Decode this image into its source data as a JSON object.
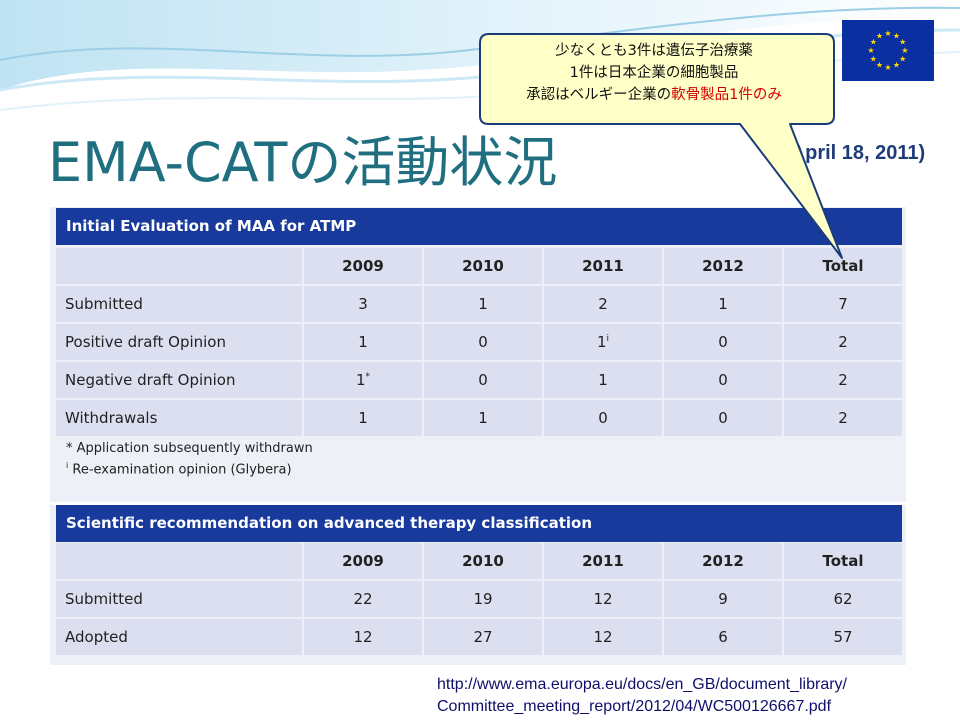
{
  "slide": {
    "title": "EMA-CATの活動状況",
    "date": "(April 18, 2011)",
    "flag_color": "#0a2fa0",
    "callout": {
      "line1": "少なくとも3件は遺伝子治療薬",
      "line2": "1件は日本企業の細胞製品",
      "line3_prefix": "承認はベルギー企業の",
      "line3_red": "軟骨製品1件のみ"
    }
  },
  "table1": {
    "header": "Initial Evaluation of MAA for ATMP",
    "columns": [
      "2009",
      "2010",
      "2011",
      "2012",
      "Total"
    ],
    "rows": [
      {
        "label": "Submitted",
        "values": [
          "3",
          "1",
          "2",
          "1",
          "7"
        ]
      },
      {
        "label": "Positive draft Opinion",
        "values": [
          "1",
          "0",
          "1",
          "0",
          "2"
        ],
        "sup_index": 2,
        "sup": "i"
      },
      {
        "label": "Negative draft Opinion",
        "values": [
          "1",
          "0",
          "1",
          "0",
          "2"
        ],
        "sup_index": 0,
        "sup": "*"
      },
      {
        "label": "Withdrawals",
        "values": [
          "1",
          "1",
          "0",
          "0",
          "2"
        ]
      }
    ],
    "footnote1": "* Application subsequently withdrawn",
    "footnote2_mark": "i",
    "footnote2": " Re-examination opinion (Glybera)"
  },
  "table2": {
    "header": "Scientific recommendation on advanced therapy classification",
    "columns": [
      "2009",
      "2010",
      "2011",
      "2012",
      "Total"
    ],
    "rows": [
      {
        "label": "Submitted",
        "values": [
          "22",
          "19",
          "12",
          "9",
          "62"
        ]
      },
      {
        "label": "Adopted",
        "values": [
          "12",
          "27",
          "12",
          "6",
          "57"
        ]
      }
    ]
  },
  "source": {
    "line1": "http://www.ema.europa.eu/docs/en_GB/document_library/",
    "line2": "Committee_meeting_report/2012/04/WC500126667.pdf"
  },
  "colors": {
    "title": "#1f6f80",
    "table_header": "#183a9c",
    "cell": "#dcdff0",
    "callout_fill": "#ffffc8",
    "callout_border": "#1a3c7a",
    "highlight": "#d40000"
  }
}
